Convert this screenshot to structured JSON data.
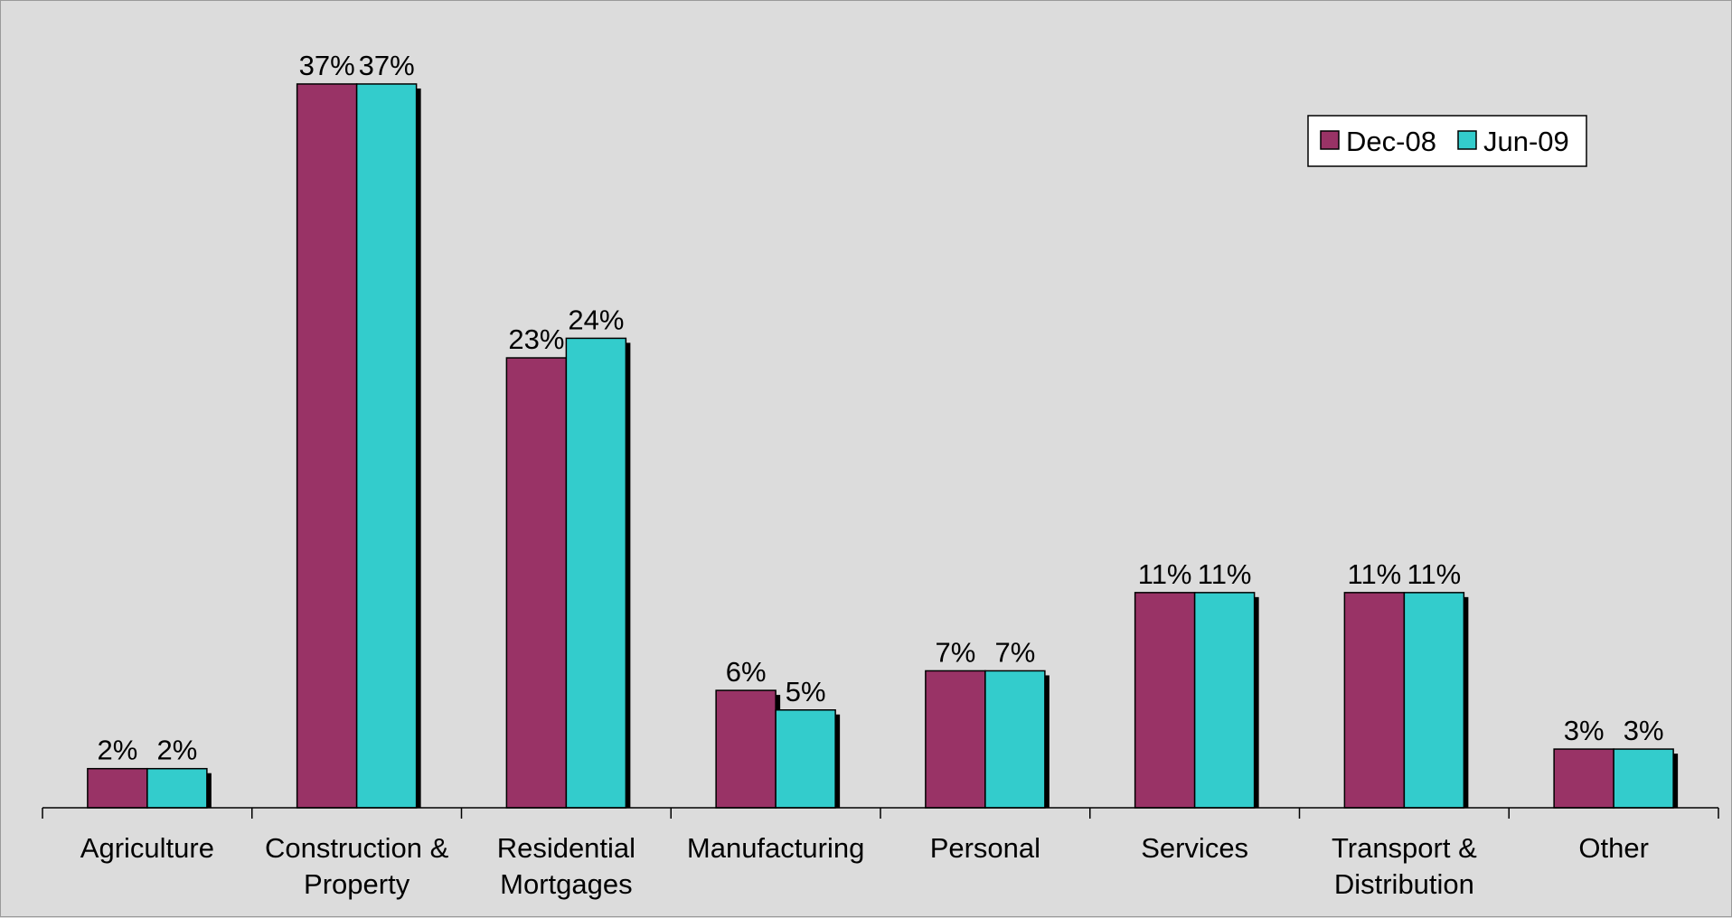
{
  "chart_data": {
    "type": "bar",
    "categories": [
      [
        "Agriculture"
      ],
      [
        "Construction &",
        "Property"
      ],
      [
        "Residential",
        "Mortgages"
      ],
      [
        "Manufacturing"
      ],
      [
        "Personal"
      ],
      [
        "Services"
      ],
      [
        "Transport &",
        "Distribution"
      ],
      [
        "Other"
      ]
    ],
    "series": [
      {
        "name": "Dec-08",
        "values": [
          2,
          37,
          23,
          6,
          7,
          11,
          11,
          3
        ],
        "labels": [
          "2%",
          "37%",
          "23%",
          "6%",
          "7%",
          "11%",
          "11%",
          "3%"
        ]
      },
      {
        "name": "Jun-09",
        "values": [
          2,
          37,
          24,
          5,
          7,
          11,
          11,
          3
        ],
        "labels": [
          "2%",
          "37%",
          "24%",
          "5%",
          "7%",
          "11%",
          "11%",
          "3%"
        ]
      }
    ],
    "ylim": [
      0,
      40
    ],
    "grid": false,
    "legend": "top-right",
    "colors": {
      "Dec-08": "#993366",
      "Jun-09": "#33cccc"
    },
    "background": "#dcdcdc"
  }
}
